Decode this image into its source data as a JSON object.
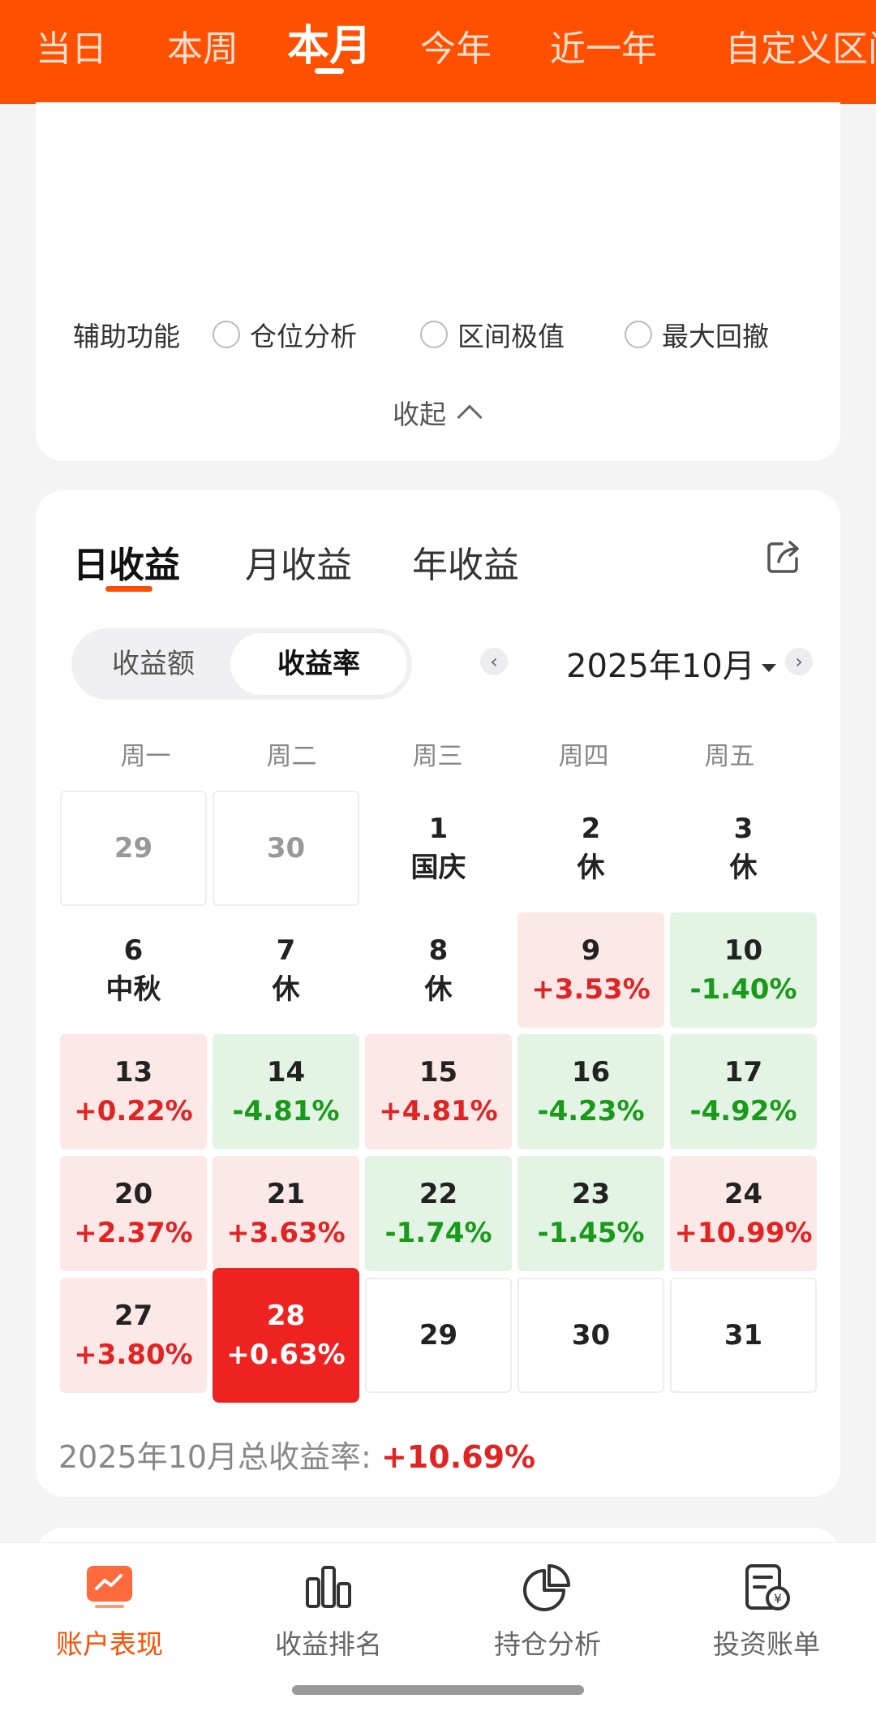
{
  "period_tabs": [
    {
      "label": "当日",
      "active": false
    },
    {
      "label": "本周",
      "active": false
    },
    {
      "label": "本月",
      "active": true
    },
    {
      "label": "今年",
      "active": false
    },
    {
      "label": "近一年",
      "active": false
    },
    {
      "label": "自定义区间",
      "active": false
    }
  ],
  "aux": {
    "label": "辅助功能",
    "options": [
      "仓位分析",
      "区间极值",
      "最大回撤"
    ],
    "collapse_label": "收起"
  },
  "returns": {
    "tabs": [
      "日收益",
      "月收益",
      "年收益"
    ],
    "active_tab": "日收益",
    "segment": {
      "options": [
        "收益额",
        "收益率"
      ],
      "selected": "收益率"
    },
    "month_label": "2025年10月",
    "weekdays": [
      "周一",
      "周二",
      "周三",
      "周四",
      "周五"
    ],
    "weeks": [
      [
        {
          "day": "29",
          "type": "out"
        },
        {
          "day": "30",
          "type": "out"
        },
        {
          "day": "1",
          "note": "国庆",
          "type": "holiday"
        },
        {
          "day": "2",
          "note": "休",
          "type": "holiday"
        },
        {
          "day": "3",
          "note": "休",
          "type": "holiday"
        }
      ],
      [
        {
          "day": "6",
          "note": "中秋",
          "type": "holiday"
        },
        {
          "day": "7",
          "note": "休",
          "type": "holiday"
        },
        {
          "day": "8",
          "note": "休",
          "type": "holiday"
        },
        {
          "day": "9",
          "value": "+3.53%",
          "type": "up"
        },
        {
          "day": "10",
          "value": "-1.40%",
          "type": "down"
        }
      ],
      [
        {
          "day": "13",
          "value": "+0.22%",
          "type": "up"
        },
        {
          "day": "14",
          "value": "-4.81%",
          "type": "down"
        },
        {
          "day": "15",
          "value": "+4.81%",
          "type": "up"
        },
        {
          "day": "16",
          "value": "-4.23%",
          "type": "down"
        },
        {
          "day": "17",
          "value": "-4.92%",
          "type": "down"
        }
      ],
      [
        {
          "day": "20",
          "value": "+2.37%",
          "type": "up"
        },
        {
          "day": "21",
          "value": "+3.63%",
          "type": "up"
        },
        {
          "day": "22",
          "value": "-1.74%",
          "type": "down"
        },
        {
          "day": "23",
          "value": "-1.45%",
          "type": "down"
        },
        {
          "day": "24",
          "value": "+10.99%",
          "type": "up"
        }
      ],
      [
        {
          "day": "27",
          "value": "+3.80%",
          "type": "up"
        },
        {
          "day": "28",
          "value": "+0.63%",
          "type": "today"
        },
        {
          "day": "29",
          "type": "empty"
        },
        {
          "day": "30",
          "type": "empty"
        },
        {
          "day": "31",
          "type": "empty"
        }
      ]
    ],
    "total_label": "2025年10月总收益率:",
    "total_value": "+10.69%"
  },
  "bottom_nav": [
    {
      "label": "账户表现",
      "icon": "account-performance-icon",
      "active": true
    },
    {
      "label": "收益排名",
      "icon": "bar-chart-icon",
      "active": false
    },
    {
      "label": "持仓分析",
      "icon": "pie-chart-icon",
      "active": false
    },
    {
      "label": "投资账单",
      "icon": "bill-icon",
      "active": false
    }
  ],
  "colors": {
    "brand": "#ff5000",
    "up": "#e02424",
    "down": "#1a9a1a"
  }
}
